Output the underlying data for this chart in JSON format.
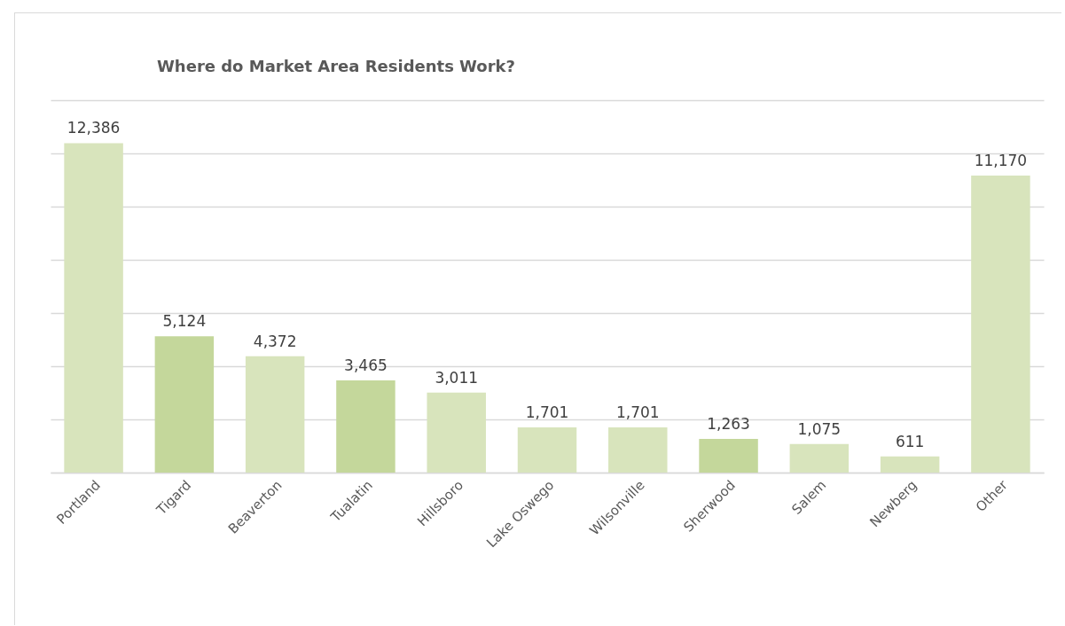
{
  "chart_data": {
    "type": "bar",
    "title": "Where do Market Area Residents Work?",
    "categories": [
      "Portland",
      "Tigard",
      "Beaverton",
      "Tualatin",
      "Hillsboro",
      "Lake Oswego",
      "Wilsonville",
      "Sherwood",
      "Salem",
      "Newberg",
      "Other"
    ],
    "values": [
      12386,
      5124,
      4372,
      3465,
      3011,
      1701,
      1701,
      1263,
      1075,
      611,
      11170
    ],
    "colors": [
      "#d8e4bc",
      "#c4d79b",
      "#d8e4bc",
      "#c4d79b",
      "#d8e4bc",
      "#d8e4bc",
      "#d8e4bc",
      "#c4d79b",
      "#d8e4bc",
      "#d8e4bc",
      "#d8e4bc"
    ],
    "ylim": [
      0,
      14000
    ],
    "yticks": [
      {
        "value": 0,
        "label": null
      },
      {
        "value": 2000,
        "label": null
      },
      {
        "value": 4000,
        "label": null
      },
      {
        "value": 6000,
        "label": null
      },
      {
        "value": 8000,
        "label": null
      },
      {
        "value": 10000,
        "label": null
      },
      {
        "value": 12000,
        "label": null
      },
      {
        "value": 14000,
        "label": null
      }
    ],
    "value_labels": [
      "12,386",
      "5,124",
      "4,372",
      "3,465",
      "3,011",
      "1,701",
      "1,701",
      "1,263",
      "1,075",
      "611",
      "11,170"
    ],
    "tick_labels": "x",
    "grid": "y"
  }
}
